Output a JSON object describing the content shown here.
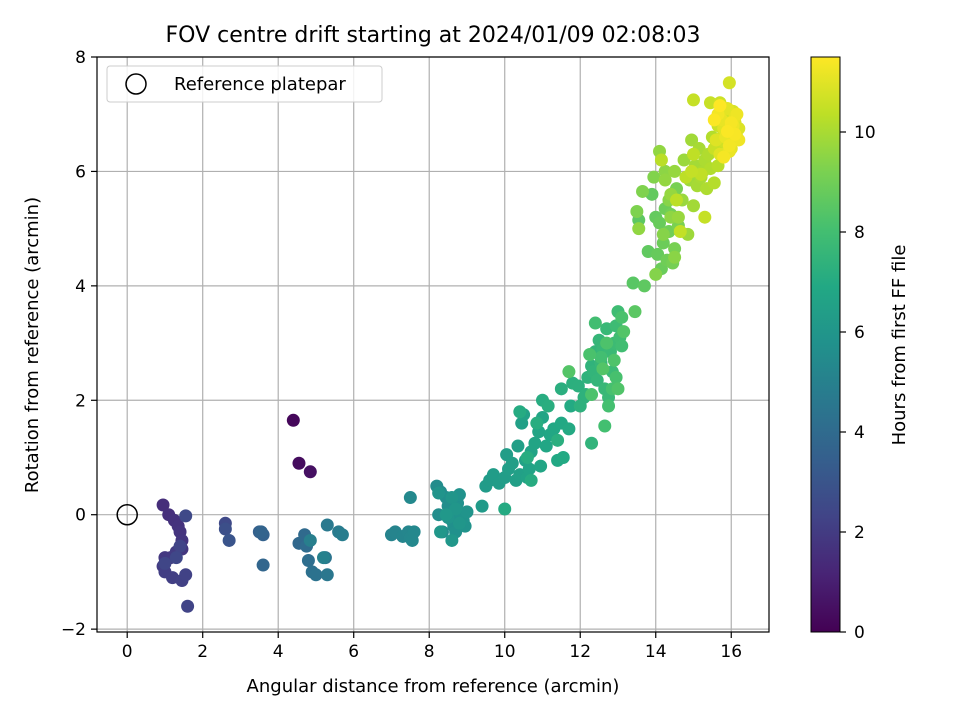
{
  "chart_data": {
    "type": "scatter",
    "title": "FOV centre drift starting at 2024/01/09 02:08:03",
    "xlabel": "Angular distance from reference (arcmin)",
    "ylabel": "Rotation from reference (arcmin)",
    "xlim": [
      -0.8,
      17.0
    ],
    "ylim": [
      -2.05,
      8.0
    ],
    "xticks": [
      0,
      2,
      4,
      6,
      8,
      10,
      12,
      14,
      16
    ],
    "yticks": [
      -2,
      0,
      2,
      4,
      6,
      8
    ],
    "grid": true,
    "legend": {
      "placement": "top-left",
      "entries": [
        {
          "label": "Reference platepar",
          "marker": "open-circle"
        }
      ]
    },
    "reference_point": {
      "x": 0,
      "y": 0
    },
    "colorbar": {
      "label": "Hours from first FF file",
      "colormap": "viridis",
      "range": [
        0,
        11.5
      ],
      "ticks": [
        0,
        2,
        4,
        6,
        8,
        10
      ]
    },
    "segments": [
      {
        "x": [
          4.4,
          4.55,
          4.85
        ],
        "y": [
          1.65,
          0.9,
          0.75
        ],
        "h": [
          0.2,
          0.5
        ]
      },
      {
        "x": [
          0.95,
          1.1,
          1.25,
          1.35,
          1.4,
          1.45,
          1.45,
          1.0,
          1.15,
          1.3,
          0.95,
          1.0,
          1.2,
          1.45,
          1.55,
          1.6,
          1.4,
          1.0,
          1.3,
          1.55
        ],
        "y": [
          0.17,
          0.0,
          -0.1,
          -0.2,
          -0.3,
          -0.45,
          -0.6,
          -0.75,
          -0.75,
          -0.65,
          -0.9,
          -1.0,
          -1.1,
          -1.15,
          -1.05,
          -1.6,
          -0.55,
          -0.85,
          -0.75,
          -0.02
        ],
        "h": [
          1.5,
          2.5
        ]
      },
      {
        "x": [
          2.6,
          2.6,
          2.7
        ],
        "y": [
          -0.15,
          -0.25,
          -0.45
        ],
        "h": [
          2.5,
          3.0
        ]
      },
      {
        "x": [
          3.5,
          3.6,
          3.55,
          3.6,
          4.55,
          4.7,
          4.75,
          4.8,
          4.9,
          5.0,
          5.25,
          5.3,
          5.3,
          5.6,
          5.7,
          4.85,
          5.2
        ],
        "y": [
          -0.3,
          -0.35,
          -0.3,
          -0.88,
          -0.5,
          -0.35,
          -0.55,
          -0.8,
          -1.0,
          -1.05,
          -0.75,
          -1.05,
          -0.18,
          -0.3,
          -0.35,
          -0.45,
          -0.75
        ],
        "h": [
          3.5,
          5.0
        ]
      },
      {
        "x": [
          7.0,
          7.1,
          7.3,
          7.45,
          7.5,
          7.55,
          7.6,
          7.5
        ],
        "y": [
          -0.35,
          -0.3,
          -0.38,
          -0.3,
          -0.4,
          -0.45,
          -0.3,
          0.3
        ],
        "h": [
          5.1,
          5.4
        ]
      },
      {
        "x": [
          8.2,
          8.3,
          8.25,
          8.35,
          8.45,
          8.5,
          8.55,
          8.6,
          8.65,
          8.7,
          8.75,
          8.8,
          8.85,
          8.9,
          8.95,
          9.0,
          8.25,
          8.5,
          8.6,
          8.7,
          8.8,
          8.6,
          8.3,
          8.45
        ],
        "y": [
          0.5,
          0.4,
          0.0,
          -0.3,
          0.3,
          0.15,
          0.05,
          -0.1,
          -0.2,
          -0.3,
          0.2,
          0.35,
          0.0,
          -0.1,
          -0.2,
          0.05,
          0.38,
          -0.05,
          0.3,
          0.1,
          -0.15,
          -0.45,
          -0.3,
          0.0
        ],
        "h": [
          5.5,
          6.1
        ]
      },
      {
        "x": [
          9.4,
          9.5,
          9.6,
          9.7,
          9.85,
          10.0,
          10.05,
          10.1,
          10.2,
          10.3,
          10.35,
          10.4,
          10.45,
          10.5,
          10.55,
          10.6,
          10.65,
          10.7,
          10.8,
          10.9,
          10.95,
          11.0,
          11.1,
          11.2,
          11.3,
          11.4,
          11.5,
          11.55,
          11.7,
          11.75,
          10.0,
          10.4,
          10.7,
          11.0,
          10.6,
          10.85,
          11.15,
          11.4
        ],
        "y": [
          0.15,
          0.5,
          0.6,
          0.7,
          0.55,
          0.65,
          1.05,
          0.8,
          0.9,
          0.6,
          1.2,
          0.7,
          1.6,
          1.75,
          0.95,
          0.65,
          0.8,
          1.1,
          1.25,
          1.45,
          0.85,
          1.7,
          1.2,
          1.4,
          1.5,
          0.95,
          1.6,
          1.0,
          1.5,
          1.9,
          0.1,
          1.8,
          0.6,
          2.0,
          1.0,
          1.6,
          1.9,
          1.3
        ],
        "h": [
          6.2,
          7.2
        ]
      },
      {
        "x": [
          11.5,
          11.8,
          11.95,
          12.0,
          12.1,
          12.15,
          12.2,
          12.3,
          12.3,
          12.35,
          12.4,
          12.45,
          12.5,
          12.55,
          12.6,
          12.65,
          12.7,
          12.75,
          12.8,
          12.85,
          12.9,
          12.95,
          13.0,
          13.05,
          13.1,
          12.4,
          12.55,
          12.65,
          12.75,
          12.85,
          12.95,
          13.1,
          12.25,
          12.3,
          12.7,
          12.9,
          13.0,
          13.15,
          12.6,
          11.7
        ],
        "y": [
          2.2,
          2.3,
          2.25,
          1.9,
          2.05,
          2.1,
          2.4,
          2.6,
          1.25,
          2.5,
          2.85,
          2.35,
          3.05,
          2.65,
          2.9,
          2.2,
          3.25,
          2.05,
          2.85,
          2.5,
          3.0,
          3.3,
          3.55,
          3.1,
          2.95,
          3.35,
          2.75,
          1.55,
          1.9,
          2.2,
          2.4,
          3.45,
          2.8,
          2.1,
          3.0,
          2.7,
          2.2,
          3.2,
          2.55,
          2.5
        ],
        "h": [
          7.2,
          8.4
        ]
      },
      {
        "x": [
          13.4,
          13.45,
          13.55,
          13.7,
          13.8,
          13.9,
          14.0,
          14.05,
          14.1,
          14.15,
          14.2,
          14.25,
          14.3,
          14.35,
          14.4,
          14.45,
          14.5,
          14.55,
          14.6,
          13.5,
          13.65,
          13.95,
          14.0,
          14.2,
          14.35,
          14.5,
          14.25,
          14.4,
          13.55
        ],
        "y": [
          4.05,
          3.55,
          5.15,
          4.0,
          4.6,
          5.6,
          5.2,
          4.55,
          5.1,
          4.3,
          4.75,
          5.35,
          4.45,
          4.95,
          5.25,
          4.4,
          4.65,
          5.7,
          5.05,
          5.3,
          5.65,
          5.9,
          4.2,
          4.9,
          5.5,
          4.5,
          6.0,
          5.2,
          5.0
        ],
        "h": [
          8.5,
          9.6
        ]
      },
      {
        "x": [
          14.1,
          14.25,
          14.4,
          14.5,
          14.6,
          14.7,
          14.75,
          14.85,
          14.9,
          14.95,
          15.0,
          15.05,
          15.1,
          15.15,
          15.2,
          15.25,
          15.3,
          15.35,
          15.4,
          15.45,
          15.5,
          15.55,
          15.6,
          15.65,
          14.15,
          14.55,
          14.8,
          15.0,
          15.2,
          14.65,
          14.95,
          15.3
        ],
        "y": [
          6.35,
          5.85,
          5.6,
          6.0,
          5.2,
          5.5,
          6.2,
          4.9,
          5.85,
          6.55,
          5.4,
          6.1,
          5.75,
          6.4,
          5.9,
          6.0,
          6.2,
          5.7,
          6.3,
          6.05,
          6.6,
          5.8,
          6.45,
          6.1,
          6.2,
          5.5,
          5.9,
          6.3,
          5.95,
          4.95,
          6.0,
          5.2
        ],
        "h": [
          9.6,
          10.5
        ]
      },
      {
        "x": [
          15.0,
          15.45,
          15.55,
          15.65,
          15.7,
          15.75,
          15.8,
          15.85,
          15.9,
          15.95,
          16.0,
          16.05,
          16.1,
          16.15,
          16.2,
          15.6,
          15.7,
          15.8,
          15.9,
          16.0,
          16.1,
          15.75,
          15.85,
          15.95,
          16.05,
          16.15,
          16.2,
          15.65,
          15.95,
          15.8,
          16.0,
          16.1,
          15.9,
          15.55,
          15.7
        ],
        "y": [
          7.25,
          7.2,
          6.4,
          6.8,
          7.2,
          6.6,
          7.0,
          6.5,
          6.9,
          7.55,
          6.7,
          7.05,
          6.85,
          6.6,
          6.75,
          6.55,
          6.3,
          6.75,
          7.1,
          6.4,
          6.95,
          6.9,
          6.6,
          6.35,
          6.8,
          7.0,
          6.55,
          7.0,
          6.45,
          6.25,
          6.85,
          6.65,
          6.7,
          6.9,
          7.15
        ],
        "h": [
          10.5,
          11.5
        ]
      }
    ]
  }
}
